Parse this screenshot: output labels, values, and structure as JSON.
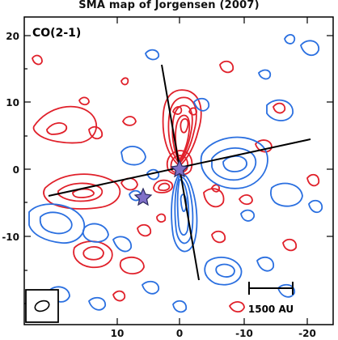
{
  "title": "SMA map of Jorgensen (2007)",
  "panel_label": "CO(2-1)",
  "scale_bar_label": "1500 AU",
  "axes": {
    "x_ticks": [
      "10",
      "0",
      "-10",
      "-20"
    ],
    "y_ticks": [
      "20",
      "10",
      "0",
      "-10"
    ]
  },
  "colors": {
    "red_contours": "#e0202a",
    "blue_contours": "#2a6fe0",
    "lines": "#000000",
    "stars": "#8070c8"
  }
}
